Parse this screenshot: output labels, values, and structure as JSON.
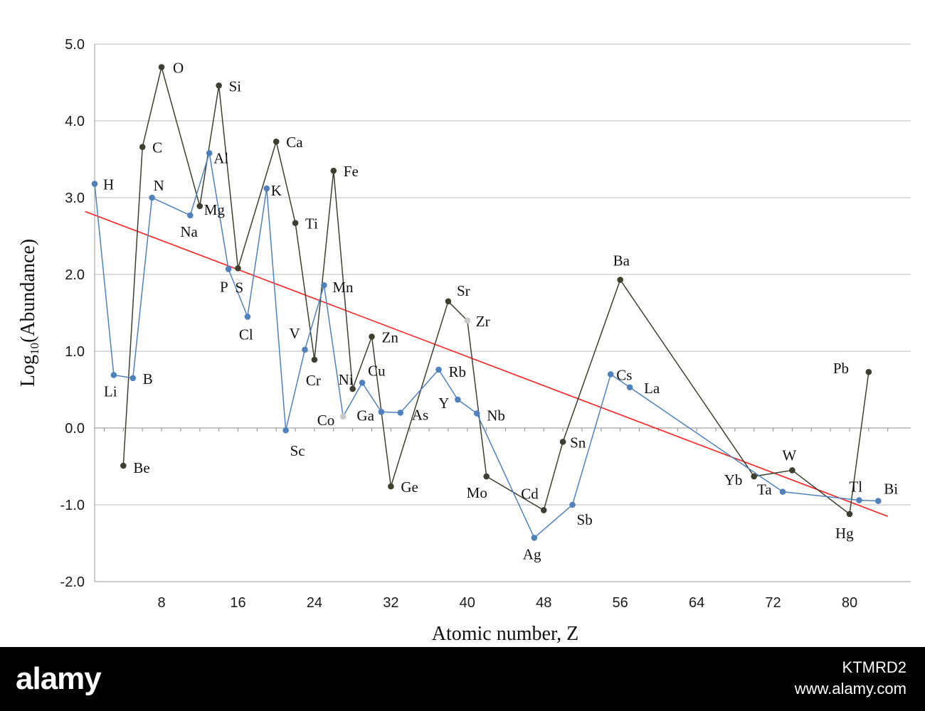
{
  "chart_data": {
    "type": "line",
    "title": "",
    "xlabel": "Atomic number, Z",
    "ylabel_main": "Log",
    "ylabel_sub": "10",
    "ylabel_rest": "(Abundance)",
    "xlim": [
      0,
      85
    ],
    "ylim": [
      -2.0,
      5.0
    ],
    "xticks": [
      8,
      16,
      24,
      32,
      40,
      48,
      56,
      64,
      72,
      80
    ],
    "yticks": [
      5.0,
      4.0,
      3.0,
      2.0,
      1.0,
      0.0,
      -1.0,
      -2.0
    ],
    "grid": true,
    "colors": {
      "odd": "#4f81bd",
      "even": "#3b4030",
      "trend": "#ff2020",
      "grid": "#b8b8b8"
    },
    "series": [
      {
        "points": [
          {
            "el": "H",
            "z": 1,
            "y": 3.18
          },
          {
            "el": "Li",
            "z": 3,
            "y": 0.69
          },
          {
            "el": "B",
            "z": 5,
            "y": 0.65
          },
          {
            "el": "N",
            "z": 7,
            "y": 3.0
          },
          {
            "el": "Na",
            "z": 11,
            "y": 2.77
          },
          {
            "el": "Al",
            "z": 13,
            "y": 3.58
          },
          {
            "el": "P",
            "z": 15,
            "y": 2.07
          },
          {
            "el": "Cl",
            "z": 17,
            "y": 1.45
          },
          {
            "el": "K",
            "z": 19,
            "y": 3.12
          },
          {
            "el": "Sc",
            "z": 21,
            "y": -0.03
          },
          {
            "el": "V",
            "z": 23,
            "y": 1.02
          },
          {
            "el": "Mn",
            "z": 25,
            "y": 1.86
          },
          {
            "el": "Co",
            "z": 27,
            "y": 0.15
          },
          {
            "el": "Cu",
            "z": 29,
            "y": 0.59
          },
          {
            "el": "Ga",
            "z": 31,
            "y": 0.21
          },
          {
            "el": "As",
            "z": 33,
            "y": 0.2
          },
          {
            "el": "Rb",
            "z": 37,
            "y": 0.76
          },
          {
            "el": "Y",
            "z": 39,
            "y": 0.37
          },
          {
            "el": "Nb",
            "z": 41,
            "y": 0.19
          },
          {
            "el": "Ag",
            "z": 47,
            "y": -1.43
          },
          {
            "el": "Sb",
            "z": 51,
            "y": -1.0
          },
          {
            "el": "Cs",
            "z": 55,
            "y": 0.7
          },
          {
            "el": "La",
            "z": 57,
            "y": 0.53
          },
          {
            "el": "Ta",
            "z": 73,
            "y": -0.83
          },
          {
            "el": "Tl",
            "z": 81,
            "y": -0.94
          },
          {
            "el": "Bi",
            "z": 83,
            "y": -0.95
          }
        ]
      },
      {
        "points": [
          {
            "el": "Be",
            "z": 4,
            "y": -0.49
          },
          {
            "el": "C",
            "z": 6,
            "y": 3.66
          },
          {
            "el": "O",
            "z": 8,
            "y": 4.7
          },
          {
            "el": "Mg",
            "z": 12,
            "y": 2.89
          },
          {
            "el": "Si",
            "z": 14,
            "y": 4.46
          },
          {
            "el": "S",
            "z": 16,
            "y": 2.08
          },
          {
            "el": "Ca",
            "z": 20,
            "y": 3.73
          },
          {
            "el": "Ti",
            "z": 22,
            "y": 2.67
          },
          {
            "el": "Cr",
            "z": 24,
            "y": 0.89
          },
          {
            "el": "Fe",
            "z": 26,
            "y": 3.35
          },
          {
            "el": "Ni",
            "z": 28,
            "y": 0.51
          },
          {
            "el": "Zn",
            "z": 30,
            "y": 1.19
          },
          {
            "el": "Ge",
            "z": 32,
            "y": -0.76
          },
          {
            "el": "Sr",
            "z": 38,
            "y": 1.65
          },
          {
            "el": "Zr",
            "z": 40,
            "y": 1.4
          },
          {
            "el": "Mo",
            "z": 42,
            "y": -0.63
          },
          {
            "el": "Cd",
            "z": 48,
            "y": -1.07
          },
          {
            "el": "Sn",
            "z": 50,
            "y": -0.18
          },
          {
            "el": "Ba",
            "z": 56,
            "y": 1.93
          },
          {
            "el": "Yb",
            "z": 70,
            "y": -0.63
          },
          {
            "el": "W",
            "z": 74,
            "y": -0.55
          },
          {
            "el": "Hg",
            "z": 80,
            "y": -1.12
          },
          {
            "el": "Pb",
            "z": 82,
            "y": 0.73
          }
        ]
      }
    ],
    "trendline": {
      "x": [
        0,
        84
      ],
      "y": [
        2.82,
        -1.15
      ]
    }
  },
  "footer": {
    "brand": "alamy",
    "stock_id": "KTMRD2",
    "url": "www.alamy.com"
  }
}
